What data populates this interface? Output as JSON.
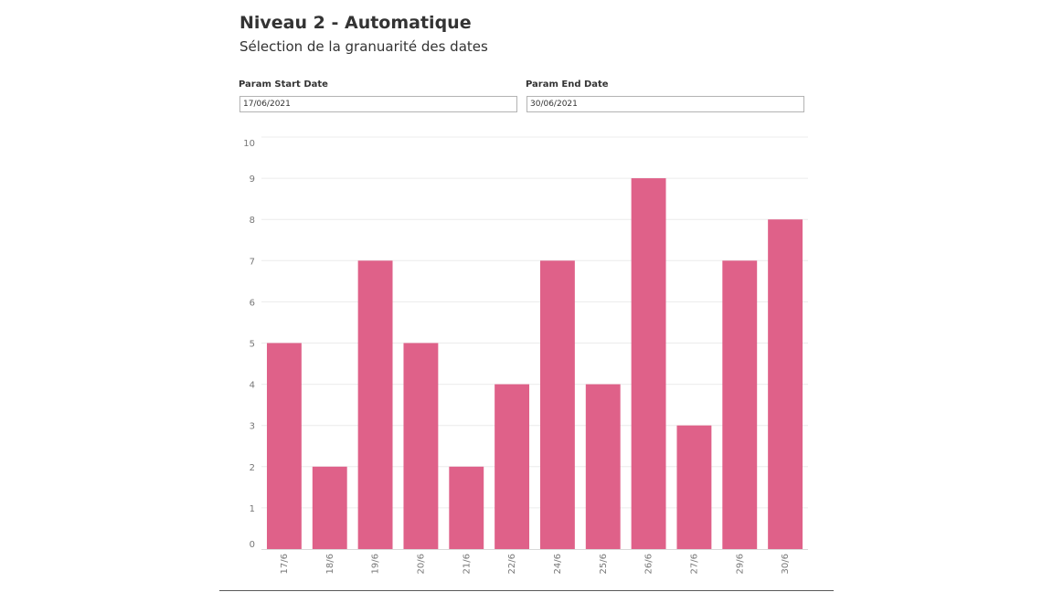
{
  "header": {
    "title": "Niveau 2 - Automatique",
    "subtitle": "Sélection de la granuarité des dates"
  },
  "params": {
    "start": {
      "label": "Param Start Date",
      "value": "17/06/2021"
    },
    "end": {
      "label": "Param End Date",
      "value": "30/06/2021"
    }
  },
  "chart_data": {
    "type": "bar",
    "categories": [
      "17/6",
      "18/6",
      "19/6",
      "20/6",
      "21/6",
      "22/6",
      "24/6",
      "25/6",
      "26/6",
      "27/6",
      "29/6",
      "30/6"
    ],
    "values": [
      5,
      2,
      7,
      5,
      2,
      4,
      7,
      4,
      9,
      3,
      7,
      8
    ],
    "ylim": [
      0,
      10
    ],
    "yticks": [
      0,
      1,
      2,
      3,
      4,
      5,
      6,
      7,
      8,
      9,
      10
    ],
    "grid": true,
    "legend": "none",
    "bar_color": "#df6189",
    "grid_color": "#ececec",
    "tick_label_color": "#777777"
  }
}
